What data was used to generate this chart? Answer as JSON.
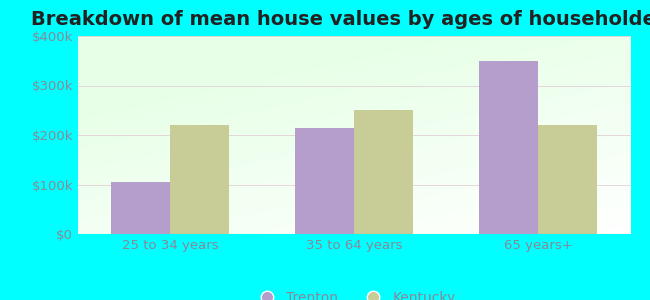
{
  "title": "Breakdown of mean house values by ages of householders",
  "categories": [
    "25 to 34 years",
    "35 to 64 years",
    "65 years+"
  ],
  "trenton_values": [
    105000,
    215000,
    350000
  ],
  "kentucky_values": [
    220000,
    250000,
    220000
  ],
  "trenton_color": "#b59dcc",
  "kentucky_color": "#c8cc96",
  "ylim": [
    0,
    400000
  ],
  "yticks": [
    0,
    100000,
    200000,
    300000,
    400000
  ],
  "ytick_labels": [
    "$0",
    "$100k",
    "$200k",
    "$300k",
    "$400k"
  ],
  "bar_width": 0.32,
  "outer_bg": "#00ffff",
  "legend_labels": [
    "Trenton",
    "Kentucky"
  ],
  "title_fontsize": 14,
  "tick_fontsize": 9.5,
  "legend_fontsize": 10,
  "tick_color": "#888899",
  "title_color": "#222222"
}
